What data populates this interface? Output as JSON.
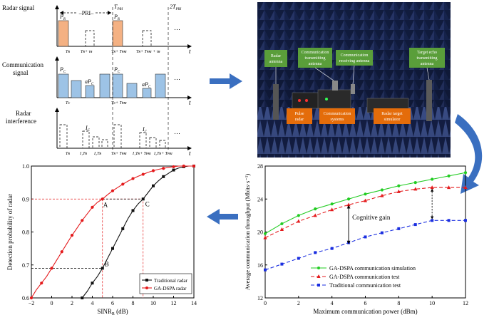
{
  "signals_panel": {
    "radar_title": "Radar signal",
    "comm_title_1": "Communication",
    "comm_title_2": "signal",
    "interf_title_1": "Radar",
    "interf_title_2": "interference",
    "pri_label": "PRI",
    "t_label": "t",
    "ellipsis": "…",
    "tpri": "T",
    "tpri_sub": "PRI",
    "two_tpri": "2T",
    "pr": "P",
    "pr_sub": "R",
    "pc": "P",
    "pc_sub": "C",
    "apc": "aP",
    "apc_sub": "C",
    "ic": "I",
    "ic_sub": "C",
    "radar_ticks": [
      "T",
      "T + τ",
      "T + T + τ"
    ],
    "tick_tr": "Tʀ",
    "tick_tr_tau": "Tʀ+ τʀ",
    "tick_tr_tpri": "Tʀ+ Tᴘʀɪ",
    "tick_tr_tpri_tau": "Tʀ+ Tᴘʀɪ + τʀ",
    "tick_tc": "Tᴄ",
    "tick_tc_tpri": "Tᴄ+ Tᴘʀɪ",
    "tick_i1": "I₁Tʀ",
    "tick_i2": "I₂Tʀ",
    "tick_i1_tpri": "I₁Tʀ+ Tᴘʀɪ",
    "tick_i2_tpri": "I₂Tʀ+ Tᴘʀɪ"
  },
  "photo_panel": {
    "labels_green": [
      "Radar antenna",
      "Communication transmitting antenna",
      "Communication receiving antenna",
      "Target echo transmitting antenna"
    ],
    "labels_orange": [
      "Pulse radar",
      "Communication systems",
      "Radar target simulator"
    ]
  },
  "colors": {
    "red": "#e41a1c",
    "black": "#111111",
    "green": "#22cc22",
    "blue": "#1a2ee0",
    "arrow_blue": "#3a6fc0",
    "pulse_fill": "#f4b183",
    "comm_fill": "#9dc3e6",
    "label_green": "#5a9e3a",
    "label_orange": "#e46c0a"
  },
  "chart_data": [
    {
      "type": "line",
      "id": "detection",
      "xlabel_main": "SINR",
      "xlabel_sub": "R",
      "xlabel_unit": "(dB)",
      "ylabel": "Detection probability of radar",
      "xlim": [
        -2,
        14
      ],
      "ylim": [
        0.6,
        1.0
      ],
      "xticks": [
        "−2",
        "0",
        "2",
        "4",
        "6",
        "8",
        "10",
        "12",
        "14"
      ],
      "yticks": [
        "0.6",
        "0.7",
        "0.8",
        "0.9",
        "1.0"
      ],
      "series": [
        {
          "name": "Traditional radar",
          "x": [
            3,
            3.5,
            4,
            4.5,
            5,
            5.5,
            6,
            6.5,
            7,
            7.5,
            8,
            8.5,
            9,
            9.5,
            10,
            10.5,
            11,
            11.5,
            12,
            12.5,
            13,
            13.5,
            14
          ],
          "y": [
            0.6,
            0.62,
            0.645,
            0.665,
            0.69,
            0.72,
            0.75,
            0.78,
            0.81,
            0.84,
            0.865,
            0.885,
            0.9,
            0.92,
            0.94,
            0.955,
            0.968,
            0.978,
            0.988,
            0.994,
            0.998,
            1.0,
            1.0
          ]
        },
        {
          "name": "GA-DSPA radar",
          "x": [
            -2,
            -1.5,
            -1,
            -0.5,
            0,
            0.5,
            1,
            1.5,
            2,
            2.5,
            3,
            3.5,
            4,
            4.5,
            5,
            5.5,
            6,
            6.5,
            7,
            7.5,
            8,
            8.5,
            9,
            9.5,
            10,
            10.5,
            11,
            11.5,
            12,
            12.5,
            13,
            13.5,
            14
          ],
          "y": [
            0.6,
            0.625,
            0.645,
            0.665,
            0.69,
            0.715,
            0.74,
            0.765,
            0.79,
            0.812,
            0.835,
            0.855,
            0.875,
            0.89,
            0.9,
            0.913,
            0.925,
            0.935,
            0.945,
            0.954,
            0.962,
            0.969,
            0.975,
            0.981,
            0.986,
            0.99,
            0.993,
            0.996,
            0.998,
            1.0,
            1.0,
            1.0,
            1.0
          ]
        }
      ],
      "points": [
        {
          "label": "A",
          "x": 5,
          "y": 0.9
        },
        {
          "label": "B",
          "x": 5,
          "y": 0.69
        },
        {
          "label": "C",
          "x": 9,
          "y": 0.9
        }
      ],
      "legend": [
        "Traditional radar",
        "GA-DSPA radar"
      ],
      "legend_position": "bottom-right"
    },
    {
      "type": "line",
      "id": "throughput",
      "xlabel": "Maximum communication power (dBm)",
      "ylabel": "Average communication throughput (Mbits·s⁻¹)",
      "xlim": [
        0,
        12
      ],
      "ylim": [
        12,
        28
      ],
      "xticks": [
        "0",
        "2",
        "4",
        "6",
        "8",
        "10",
        "12"
      ],
      "yticks": [
        "12",
        "16",
        "20",
        "24",
        "28"
      ],
      "series": [
        {
          "name": "GA-DSPA communication simulation",
          "x": [
            0,
            1,
            2,
            3,
            4,
            5,
            6,
            7,
            8,
            9,
            10,
            11,
            12
          ],
          "y": [
            19.8,
            21.0,
            22.0,
            22.8,
            23.4,
            24.0,
            24.6,
            25.1,
            25.6,
            26.0,
            26.4,
            26.8,
            27.2
          ]
        },
        {
          "name": "GA-DSPA communication test",
          "x": [
            0,
            1,
            2,
            3,
            4,
            5,
            6,
            7,
            8,
            9,
            10,
            11,
            12
          ],
          "y": [
            19.3,
            20.3,
            21.3,
            22.0,
            22.7,
            23.3,
            23.8,
            24.4,
            24.9,
            25.2,
            25.4,
            25.4,
            25.4
          ]
        },
        {
          "name": "Traditional communication test",
          "x": [
            0,
            1,
            2,
            3,
            4,
            5,
            6,
            7,
            8,
            9,
            10,
            11,
            12
          ],
          "y": [
            15.4,
            16.1,
            16.8,
            17.5,
            18.0,
            18.7,
            19.4,
            19.9,
            20.4,
            20.9,
            21.4,
            21.4,
            21.4
          ]
        }
      ],
      "annotation": "Cognitive gain",
      "legend_position": "bottom-right"
    }
  ]
}
